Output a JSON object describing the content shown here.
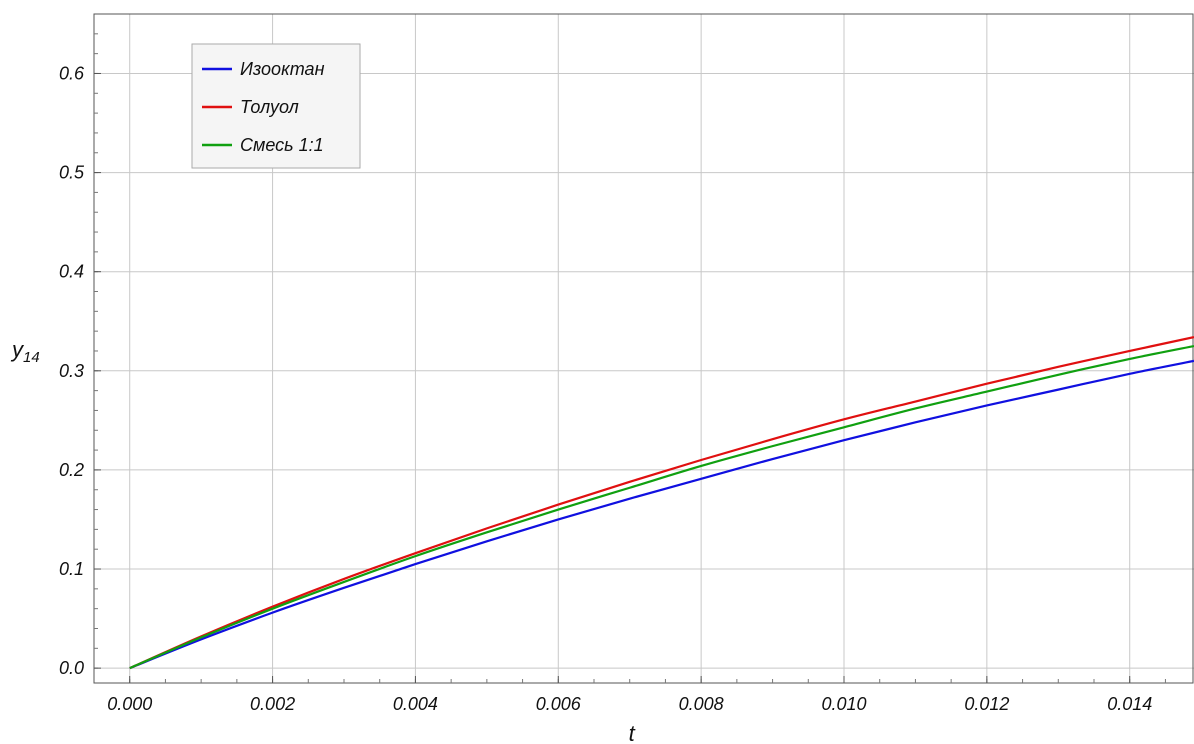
{
  "chart_data": {
    "type": "line",
    "title": "",
    "xlabel": "t",
    "ylabel": "y",
    "ylabel_subscript": "14",
    "xlim": [
      -0.0005,
      0.0149
    ],
    "ylim": [
      -0.015,
      0.66
    ],
    "x_ticks": [
      0.0,
      0.002,
      0.004,
      0.006,
      0.008,
      0.01,
      0.012,
      0.014
    ],
    "x_tick_labels": [
      "0.000",
      "0.002",
      "0.004",
      "0.006",
      "0.008",
      "0.010",
      "0.012",
      "0.014"
    ],
    "y_ticks": [
      0.0,
      0.1,
      0.2,
      0.3,
      0.4,
      0.5,
      0.6
    ],
    "y_tick_labels": [
      "0.0",
      "0.1",
      "0.2",
      "0.3",
      "0.4",
      "0.5",
      "0.6"
    ],
    "grid": true,
    "legend_position": "top-left",
    "series": [
      {
        "name": "Изооктан",
        "color": "#1010e0",
        "x": [
          0.0,
          0.001,
          0.002,
          0.003,
          0.004,
          0.005,
          0.006,
          0.007,
          0.008,
          0.009,
          0.01,
          0.011,
          0.012,
          0.013,
          0.014,
          0.0149
        ],
        "y": [
          0.0,
          0.029,
          0.056,
          0.081,
          0.105,
          0.128,
          0.15,
          0.171,
          0.191,
          0.211,
          0.23,
          0.248,
          0.265,
          0.281,
          0.297,
          0.31
        ]
      },
      {
        "name": "Толуол",
        "color": "#e01010",
        "x": [
          0.0,
          0.001,
          0.002,
          0.003,
          0.004,
          0.005,
          0.006,
          0.007,
          0.008,
          0.009,
          0.01,
          0.011,
          0.012,
          0.013,
          0.014,
          0.0149
        ],
        "y": [
          0.0,
          0.032,
          0.062,
          0.09,
          0.116,
          0.141,
          0.165,
          0.188,
          0.21,
          0.231,
          0.251,
          0.269,
          0.287,
          0.304,
          0.32,
          0.334
        ]
      },
      {
        "name": "Смесь 1:1",
        "color": "#10a010",
        "x": [
          0.0,
          0.001,
          0.002,
          0.003,
          0.004,
          0.005,
          0.006,
          0.007,
          0.008,
          0.009,
          0.01,
          0.011,
          0.012,
          0.013,
          0.014,
          0.0149
        ],
        "y": [
          0.0,
          0.031,
          0.06,
          0.087,
          0.113,
          0.137,
          0.16,
          0.182,
          0.204,
          0.224,
          0.243,
          0.262,
          0.279,
          0.296,
          0.312,
          0.325
        ]
      }
    ]
  }
}
